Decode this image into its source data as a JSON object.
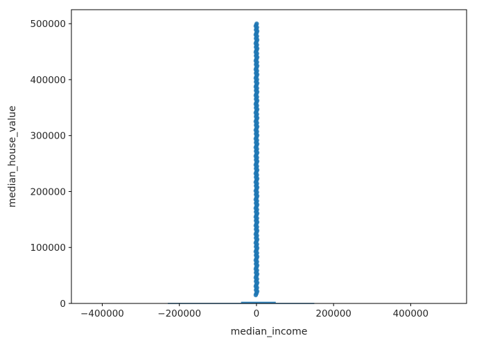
{
  "chart_data": {
    "type": "scatter",
    "title": "",
    "xlabel": "median_income",
    "ylabel": "median_house_value",
    "xlim": [
      -480000,
      545000
    ],
    "ylim": [
      0,
      525000
    ],
    "xticks": [
      -400000,
      -200000,
      0,
      200000,
      400000
    ],
    "xtick_labels": [
      "−400000",
      "−200000",
      "0",
      "200000",
      "400000"
    ],
    "yticks": [
      0,
      100000,
      200000,
      300000,
      400000,
      500000
    ],
    "ytick_labels": [
      "0",
      "100000",
      "200000",
      "300000",
      "400000",
      "500000"
    ],
    "grid": false,
    "series": [
      {
        "type": "scatter",
        "color": "#1f77b4",
        "x_range": [
          0.5,
          15
        ],
        "y_range": [
          14999,
          500001
        ],
        "note_points": "dense vertical column of points at median_income near 0 on this axis scale"
      },
      {
        "type": "line",
        "color": "#1f77b4",
        "segments": [
          {
            "x": [
              -230000,
              150000
            ],
            "y": [
              0,
              0
            ]
          },
          {
            "x": [
              -40000,
              50000
            ],
            "y": [
              2000,
              2000
            ]
          }
        ]
      }
    ]
  }
}
